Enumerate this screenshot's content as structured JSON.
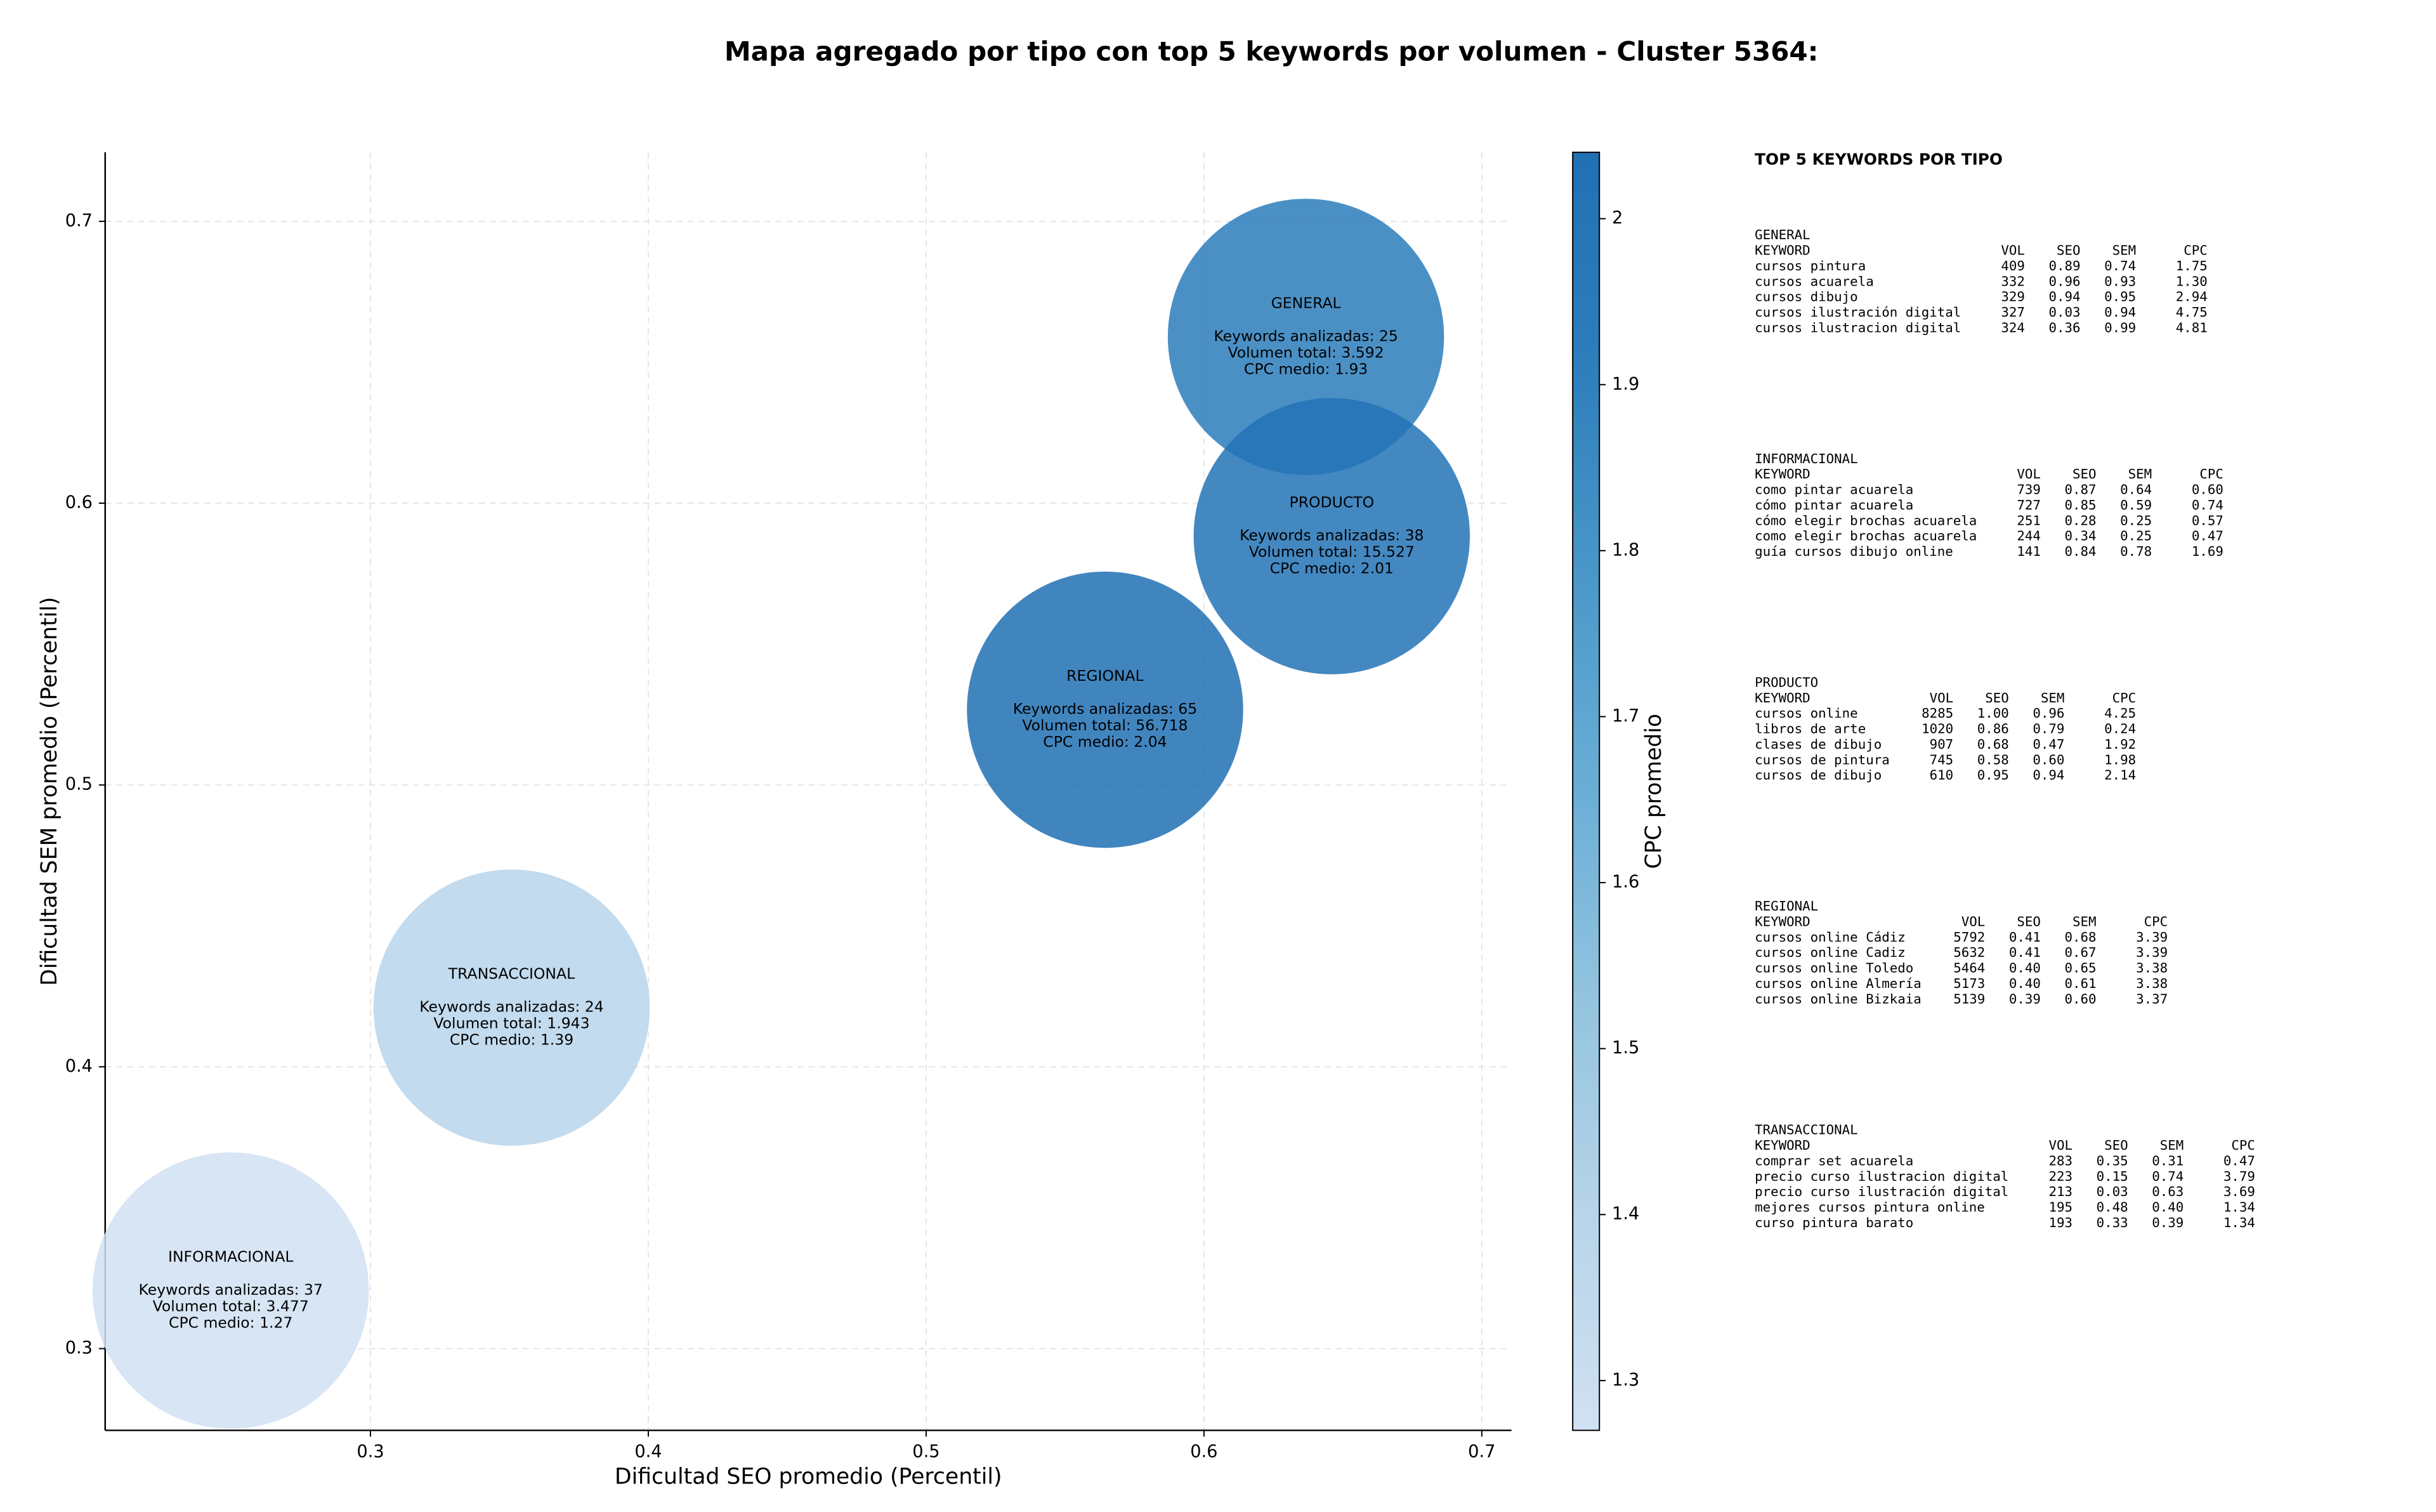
{
  "chart_data": {
    "type": "bubble",
    "title": "Mapa agregado por tipo con top 5 keywords por volumen - Cluster 5364:",
    "xlabel": "Dificultad SEO promedio (Percentil)",
    "ylabel": "Dificultad SEM promedio (Percentil)",
    "xlim": [
      0.2045,
      0.7107
    ],
    "ylim": [
      0.271,
      0.7245
    ],
    "xticks": [
      0.3,
      0.4,
      0.5,
      0.6,
      0.7
    ],
    "yticks": [
      0.3,
      0.4,
      0.5,
      0.6,
      0.7
    ],
    "grid": true,
    "colorbar": {
      "label": "CPC promedio",
      "lim": [
        1.27,
        2.04
      ],
      "ticks": [
        1.3,
        1.4,
        1.5,
        1.6,
        1.7,
        1.8,
        1.9,
        2.0
      ],
      "colormap": [
        "#d0e1f2",
        "#b7d4ea",
        "#94c4df",
        "#6aaed6",
        "#4a98c9",
        "#2e7ebc",
        "#2070b4"
      ]
    },
    "points": [
      {
        "name": "GENERAL",
        "x": 0.6367,
        "y": 0.659,
        "cpc": 1.93,
        "lines": [
          "Keywords analizadas: 25",
          "Volumen total: 3.592",
          "CPC medio: 1.93"
        ]
      },
      {
        "name": "PRODUCTO",
        "x": 0.646,
        "y": 0.5883,
        "cpc": 2.01,
        "lines": [
          "Keywords analizadas: 38",
          "Volumen total: 15.527",
          "CPC medio: 2.01"
        ]
      },
      {
        "name": "REGIONAL",
        "x": 0.5644,
        "y": 0.5267,
        "cpc": 2.04,
        "lines": [
          "Keywords analizadas: 65",
          "Volumen total: 56.718",
          "CPC medio: 2.04"
        ]
      },
      {
        "name": "TRANSACCIONAL",
        "x": 0.3508,
        "y": 0.421,
        "cpc": 1.39,
        "lines": [
          "Keywords analizadas: 24",
          "Volumen total: 1.943",
          "CPC medio: 1.39"
        ]
      },
      {
        "name": "INFORMACIONAL",
        "x": 0.2497,
        "y": 0.3206,
        "cpc": 1.27,
        "lines": [
          "Keywords analizadas: 37",
          "Volumen total: 3.477",
          "CPC medio: 1.27"
        ]
      }
    ]
  },
  "side_panel": {
    "title": "TOP 5 KEYWORDS POR TIPO",
    "groups": [
      {
        "title": "GENERAL",
        "header": [
          "KEYWORD",
          "VOL",
          "SEO",
          "SEM",
          "CPC"
        ],
        "rows": [
          [
            "cursos pintura",
            "409",
            "0.89",
            "0.74",
            "1.75"
          ],
          [
            "cursos acuarela",
            "332",
            "0.96",
            "0.93",
            "1.30"
          ],
          [
            "cursos dibujo",
            "329",
            "0.94",
            "0.95",
            "2.94"
          ],
          [
            "cursos ilustración digital",
            "327",
            "0.03",
            "0.94",
            "4.75"
          ],
          [
            "cursos ilustracion digital",
            "324",
            "0.36",
            "0.99",
            "4.81"
          ]
        ]
      },
      {
        "title": "INFORMACIONAL",
        "header": [
          "KEYWORD",
          "VOL",
          "SEO",
          "SEM",
          "CPC"
        ],
        "rows": [
          [
            "como pintar acuarela",
            "739",
            "0.87",
            "0.64",
            "0.60"
          ],
          [
            "cómo pintar acuarela",
            "727",
            "0.85",
            "0.59",
            "0.74"
          ],
          [
            "cómo elegir brochas acuarela",
            "251",
            "0.28",
            "0.25",
            "0.57"
          ],
          [
            "como elegir brochas acuarela",
            "244",
            "0.34",
            "0.25",
            "0.47"
          ],
          [
            "guía cursos dibujo online",
            "141",
            "0.84",
            "0.78",
            "1.69"
          ]
        ]
      },
      {
        "title": "PRODUCTO",
        "header": [
          "KEYWORD",
          "VOL",
          "SEO",
          "SEM",
          "CPC"
        ],
        "rows": [
          [
            "cursos online",
            "8285",
            "1.00",
            "0.96",
            "4.25"
          ],
          [
            "libros de arte",
            "1020",
            "0.86",
            "0.79",
            "0.24"
          ],
          [
            "clases de dibujo",
            "907",
            "0.68",
            "0.47",
            "1.92"
          ],
          [
            "cursos de pintura",
            "745",
            "0.58",
            "0.60",
            "1.98"
          ],
          [
            "cursos de dibujo",
            "610",
            "0.95",
            "0.94",
            "2.14"
          ]
        ]
      },
      {
        "title": "REGIONAL",
        "header": [
          "KEYWORD",
          "VOL",
          "SEO",
          "SEM",
          "CPC"
        ],
        "rows": [
          [
            "cursos online Cádiz",
            "5792",
            "0.41",
            "0.68",
            "3.39"
          ],
          [
            "cursos online Cadiz",
            "5632",
            "0.41",
            "0.67",
            "3.39"
          ],
          [
            "cursos online Toledo",
            "5464",
            "0.40",
            "0.65",
            "3.38"
          ],
          [
            "cursos online Almería",
            "5173",
            "0.40",
            "0.61",
            "3.38"
          ],
          [
            "cursos online Bizkaia",
            "5139",
            "0.39",
            "0.60",
            "3.37"
          ]
        ]
      },
      {
        "title": "TRANSACCIONAL",
        "header": [
          "KEYWORD",
          "VOL",
          "SEO",
          "SEM",
          "CPC"
        ],
        "rows": [
          [
            "comprar set acuarela",
            "283",
            "0.35",
            "0.31",
            "0.47"
          ],
          [
            "precio curso ilustracion digital",
            "223",
            "0.15",
            "0.74",
            "3.79"
          ],
          [
            "precio curso ilustración digital",
            "213",
            "0.03",
            "0.63",
            "3.69"
          ],
          [
            "mejores cursos pintura online",
            "195",
            "0.48",
            "0.40",
            "1.34"
          ],
          [
            "curso pintura barato",
            "193",
            "0.33",
            "0.39",
            "1.34"
          ]
        ]
      }
    ]
  }
}
